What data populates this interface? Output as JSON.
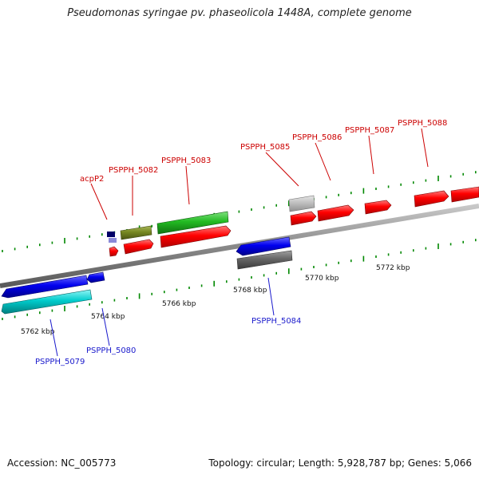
{
  "title": "Pseudomonas syringae pv. phaseolicola 1448A, complete genome",
  "footer": {
    "accession": "Accession: NC_005773",
    "stats": "Topology: circular; Length: 5,928,787 bp; Genes: 5,066"
  },
  "kbp_labels": [
    {
      "id": "kbp-5762",
      "text": "5762 kbp"
    },
    {
      "id": "kbp-5764",
      "text": "5764 kbp"
    },
    {
      "id": "kbp-5766",
      "text": "5766 kbp"
    },
    {
      "id": "kbp-5768",
      "text": "5768 kbp"
    },
    {
      "id": "kbp-5770",
      "text": "5770 kbp"
    },
    {
      "id": "kbp-5772",
      "text": "5772 kbp"
    }
  ],
  "top_gene_labels": [
    {
      "id": "acpP2",
      "text": "acpP2"
    },
    {
      "id": "PSPPH_5082",
      "text": "PSPPH_5082"
    },
    {
      "id": "PSPPH_5083",
      "text": "PSPPH_5083"
    },
    {
      "id": "PSPPH_5085",
      "text": "PSPPH_5085"
    },
    {
      "id": "PSPPH_5086",
      "text": "PSPPH_5086"
    },
    {
      "id": "PSPPH_5087",
      "text": "PSPPH_5087"
    },
    {
      "id": "PSPPH_5088",
      "text": "PSPPH_5088"
    }
  ],
  "bottom_gene_labels": [
    {
      "id": "PSPPH_5079",
      "text": "PSPPH_5079"
    },
    {
      "id": "PSPPH_5080",
      "text": "PSPPH_5080"
    },
    {
      "id": "PSPPH_5084",
      "text": "PSPPH_5084"
    }
  ],
  "colors": {
    "forward_cds": "#ff0000",
    "reverse_cds": "#0000ee",
    "reverse_alt": "#00cccc",
    "green_feature": "#22bb22",
    "olive_feature": "#778822",
    "grey_feature": "#666666",
    "light_grey_feature": "#c0c0c0",
    "tick_green": "#008800",
    "top_label": "#cc0000",
    "bottom_label": "#1a1acc"
  }
}
